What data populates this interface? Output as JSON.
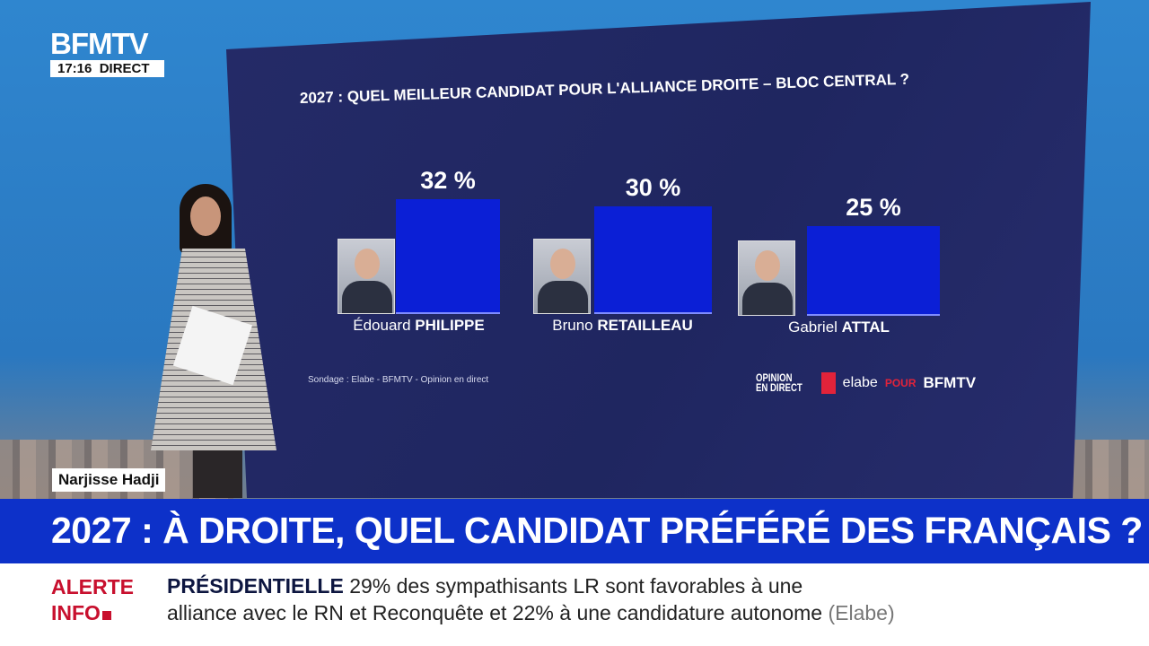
{
  "channel": {
    "logo": "BFMTV",
    "time": "17:16",
    "live": "DIRECT"
  },
  "chart_data": {
    "type": "bar",
    "title": "2027 : QUEL MEILLEUR CANDIDAT POUR L'ALLIANCE DROITE – BLOC CENTRAL ?",
    "categories": [
      {
        "first": "Édouard",
        "last": "PHILIPPE"
      },
      {
        "first": "Bruno",
        "last": "RETAILLEAU"
      },
      {
        "first": "Gabriel",
        "last": "ATTAL"
      }
    ],
    "values": [
      32,
      30,
      25
    ],
    "labels": [
      "32 %",
      "30 %",
      "25 %"
    ],
    "unit": "%",
    "bar_color": "#0b1fd6",
    "source": "Sondage : Elabe - BFMTV - Opinion en direct",
    "logos": {
      "opinion1": "OPINION",
      "opinion2": "EN DIRECT",
      "elabe": "elabe",
      "pour": "POUR",
      "bfmtv": "BFMTV"
    }
  },
  "presenter_name": "Narjisse Hadji",
  "headline": "2027 : À DROITE, QUEL CANDIDAT PRÉFÉRÉ DES FRANÇAIS ?",
  "ticker": {
    "alert1": "ALERTE",
    "alert2": "INFO",
    "topic": "PRÉSIDENTIELLE",
    "line1": "29% des sympathisants LR sont favorables à une",
    "line2": "alliance avec le RN et Reconquête et 22% à une candidature autonome",
    "source": "(Elabe)"
  }
}
